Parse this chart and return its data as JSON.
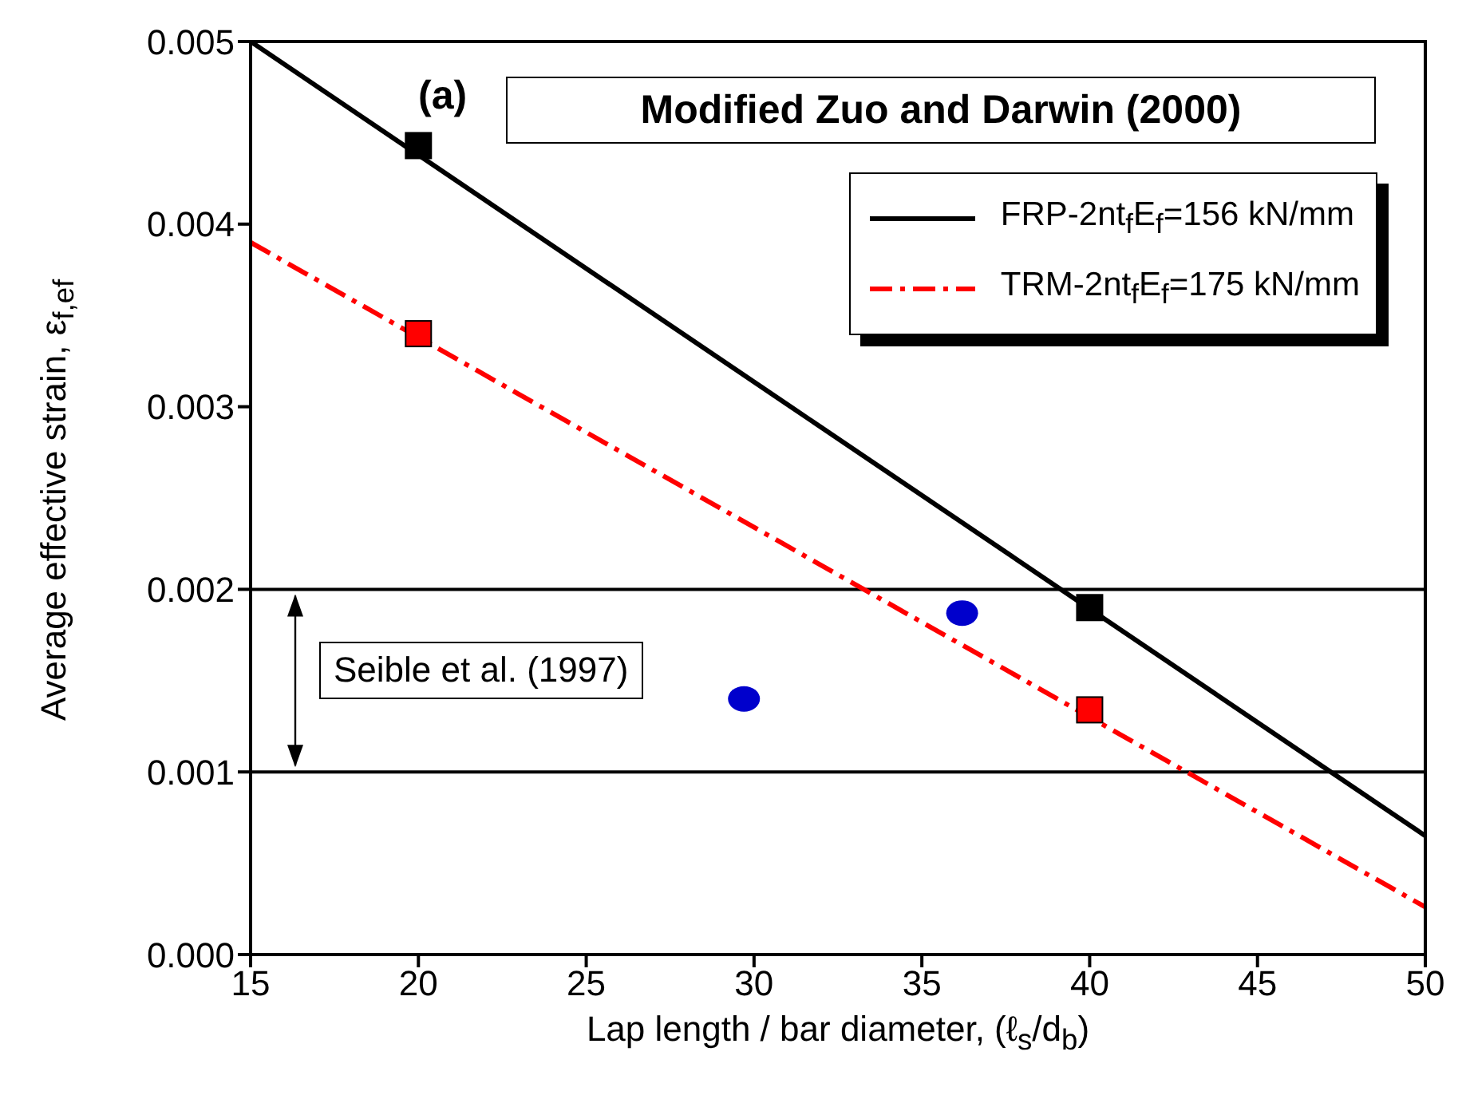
{
  "chart_data": {
    "type": "line",
    "title": "Modified Zuo and Darwin (2000)",
    "xlabel": "Lap length / bar diameter,  (ℓ$_{s}$/d$_{b}$)",
    "ylabel": "Average effective strain, ε$_{f,ef}$",
    "annotations": [
      "(a)",
      "Seible et al. (1997)"
    ],
    "xlim": [
      15,
      50
    ],
    "xticks": [
      15,
      20,
      25,
      30,
      35,
      40,
      45,
      50
    ],
    "ylim": [
      0,
      0.005
    ],
    "yticks": [
      {
        "value": 0,
        "label": "0.000"
      },
      {
        "value": 0.001,
        "label": "0.001"
      },
      {
        "value": 0.002,
        "label": "0.002"
      },
      {
        "value": 0.003,
        "label": "0.003"
      },
      {
        "value": 0.004,
        "label": "0.004"
      },
      {
        "value": 0.005,
        "label": "0.005"
      }
    ],
    "grid": false,
    "legend": "top right",
    "series": [
      {
        "name": "FRP-2nt$_{f}$E$_{f}$=156 kN/mm",
        "color": "#000000",
        "x": [
          15,
          50
        ],
        "values": [
          0.005,
          0.00065
        ],
        "marker": "none",
        "line_style": "solid"
      },
      {
        "name": "TRM-2nt$_{f}$E$_{f}$=175 kN/mm",
        "color": "#ff0000",
        "x": [
          15,
          50
        ],
        "values": [
          0.0039,
          0.00026
        ],
        "marker": "none",
        "line_style": "dashed"
      },
      {
        "type": "scatter",
        "color": "#000000",
        "x": [
          20,
          40
        ],
        "values": [
          0.00443,
          0.0019
        ],
        "marker": "square"
      },
      {
        "type": "scatter",
        "color": "#ff0000",
        "x": [
          20,
          40
        ],
        "values": [
          0.0034,
          0.00134
        ],
        "marker": "square"
      },
      {
        "type": "scatter",
        "color": "#0000cc",
        "x": [
          29.7,
          36.2
        ],
        "values": [
          0.0014,
          0.00187
        ],
        "marker": "circle"
      }
    ],
    "ref_lines": [
      {
        "axis": "y",
        "value": 0.002,
        "color": "#000000"
      },
      {
        "axis": "y",
        "value": 0.001,
        "color": "#000000"
      }
    ]
  }
}
